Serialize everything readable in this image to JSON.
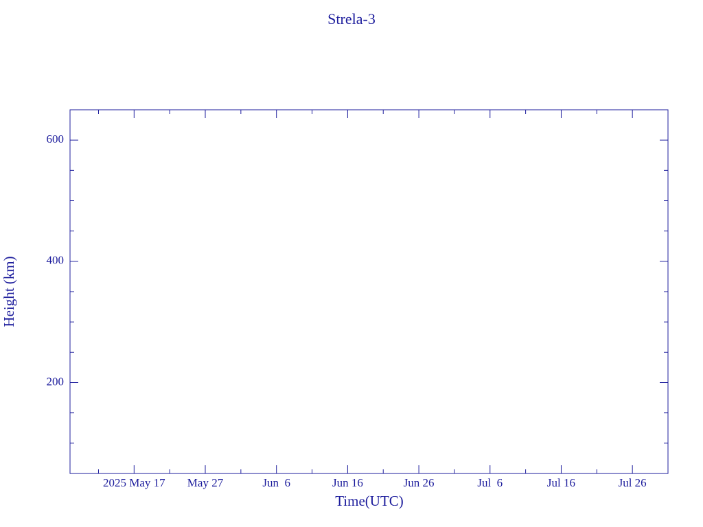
{
  "chart_data": {
    "type": "line",
    "title": "Strela-3",
    "x_label": "Time(UTC)",
    "y_label": "Height (km)",
    "xlim": [
      "2025-05-08",
      "2025-07-31"
    ],
    "xticks": [
      {
        "value": "2025-05-17",
        "label": "2025 May 17"
      },
      {
        "value": "2025-05-27",
        "label": "May 27"
      },
      {
        "value": "2025-06-06",
        "label": "Jun  6"
      },
      {
        "value": "2025-06-16",
        "label": "Jun 16"
      },
      {
        "value": "2025-06-26",
        "label": "Jun 26"
      },
      {
        "value": "2025-07-06",
        "label": "Jul  6"
      },
      {
        "value": "2025-07-16",
        "label": "Jul 16"
      },
      {
        "value": "2025-07-26",
        "label": "Jul 26"
      }
    ],
    "ylim": [
      50,
      650
    ],
    "yticks": [
      200,
      400,
      600
    ],
    "series": []
  }
}
